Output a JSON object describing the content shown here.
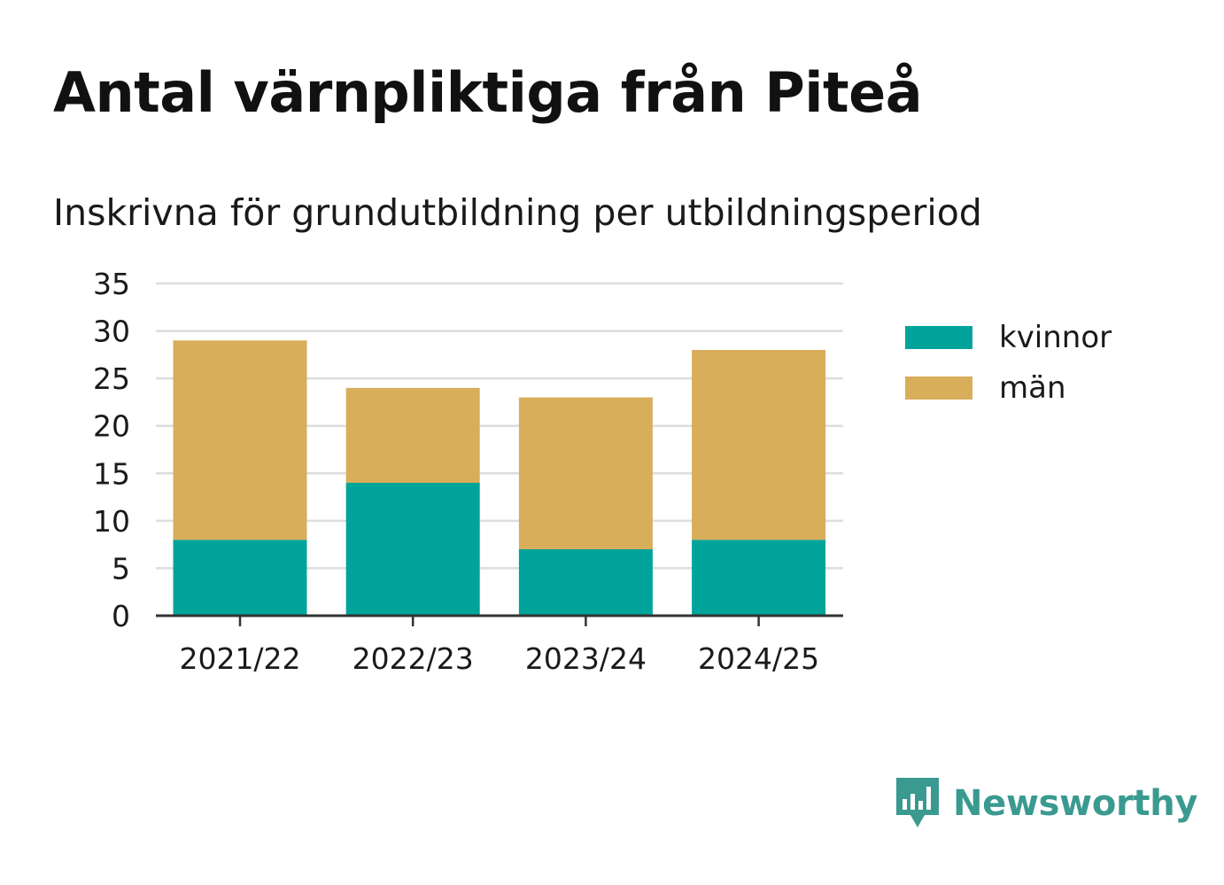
{
  "title": "Antal värnpliktiga från Piteå",
  "subtitle": "Inskrivna för grundutbildning per utbildningsperiod",
  "brand": {
    "name": "Newsworthy",
    "icon": "newsworthy-logo-icon",
    "color": "#3a9a90"
  },
  "colors": {
    "kvinnor": "#00a49a",
    "man": "#d8ae5a",
    "grid": "#dddddd",
    "axis": "#333333",
    "text": "#1a1a1a"
  },
  "chart_data": {
    "type": "bar",
    "stacked": true,
    "title": "Antal värnpliktiga från Piteå",
    "subtitle": "Inskrivna för grundutbildning per utbildningsperiod",
    "categories": [
      "2021/22",
      "2022/23",
      "2023/24",
      "2024/25"
    ],
    "series": [
      {
        "name": "kvinnor",
        "values": [
          8,
          14,
          7,
          8
        ],
        "color": "#00a49a"
      },
      {
        "name": "män",
        "values": [
          21,
          10,
          16,
          20
        ],
        "color": "#d8ae5a"
      }
    ],
    "ylim": [
      0,
      35
    ],
    "yticks": [
      "0",
      "5",
      "10",
      "15",
      "20",
      "25",
      "30",
      "35"
    ],
    "ytick_values": [
      0,
      5,
      10,
      15,
      20,
      25,
      30,
      35
    ],
    "grid": true,
    "legend_position": "right"
  }
}
